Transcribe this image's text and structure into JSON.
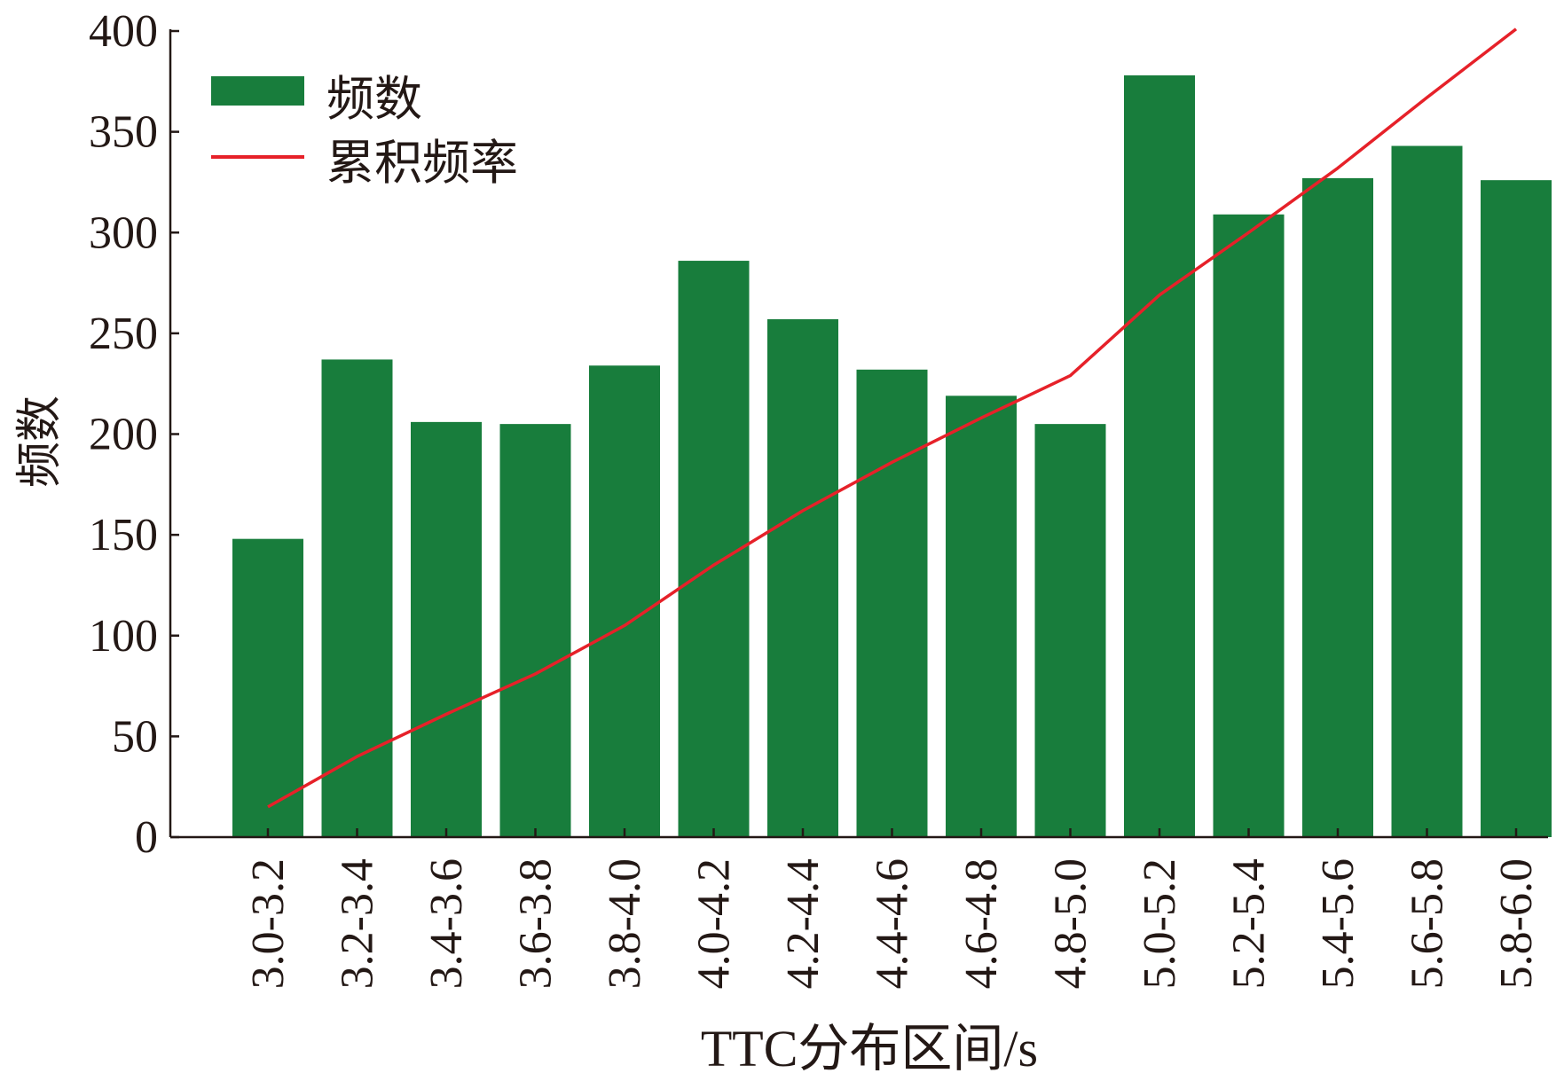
{
  "chart_data": {
    "type": "bar",
    "title": "",
    "xlabel": "TTC分布区间/s",
    "ylabel": "频数",
    "ylim": [
      0,
      400
    ],
    "yticks": [
      0,
      50,
      100,
      150,
      200,
      250,
      300,
      350,
      400
    ],
    "categories": [
      "3.0-3.2",
      "3.2-3.4",
      "3.4-3.6",
      "3.6-3.8",
      "3.8-4.0",
      "4.0-4.2",
      "4.2-4.4",
      "4.4-4.6",
      "4.6-4.8",
      "4.8-5.0",
      "5.0-5.2",
      "5.2-5.4",
      "5.4-5.6",
      "5.6-5.8",
      "5.8-6.0"
    ],
    "series": [
      {
        "name": "频数",
        "type": "bar",
        "color": "#187d3c",
        "values": [
          148,
          237,
          206,
          205,
          234,
          286,
          257,
          232,
          219,
          205,
          378,
          309,
          327,
          343,
          326
        ]
      },
      {
        "name": "累积频率",
        "type": "line",
        "color": "#e62129",
        "values": [
          15,
          40,
          61,
          81,
          105,
          135,
          162,
          186,
          208,
          229,
          269,
          300,
          332,
          367,
          401
        ]
      }
    ],
    "legend_position": "top-left",
    "grid": false
  }
}
